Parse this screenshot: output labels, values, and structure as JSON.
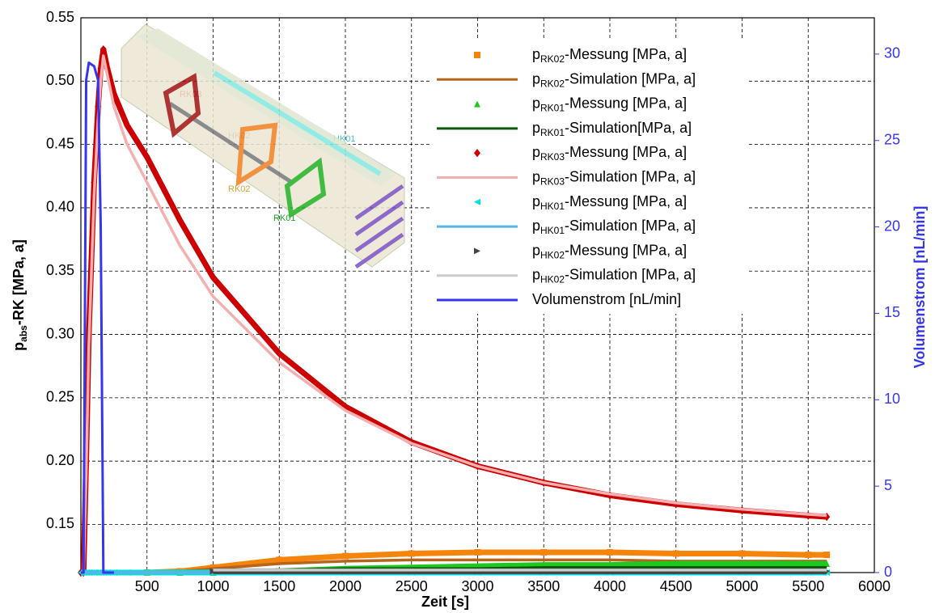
{
  "chart_data": {
    "type": "line",
    "x": [
      0,
      20,
      40,
      60,
      100,
      130,
      150,
      170,
      200,
      250,
      350,
      500,
      750,
      1000,
      1500,
      2000,
      2500,
      3000,
      3500,
      4000,
      4500,
      5000,
      5500,
      5640
    ],
    "xlim": [
      0,
      6000
    ],
    "xticks": [
      500,
      1000,
      1500,
      2000,
      2500,
      3000,
      3500,
      4000,
      4500,
      5000,
      5500,
      6000
    ],
    "ylim": [
      0.112,
      0.55
    ],
    "yticks": [
      0.15,
      {
        "value": 0.2,
        "label": "0.20"
      },
      0.25,
      {
        "value": 0.3,
        "label": "0.30"
      },
      0.35,
      {
        "value": 0.4,
        "label": "0.40"
      },
      0.45,
      {
        "value": 0.5,
        "label": "0.50"
      },
      0.55
    ],
    "y2lim": [
      0,
      32.1
    ],
    "y2ticks": [
      0,
      5,
      10,
      15,
      20,
      25,
      30
    ],
    "xlabel": "Zeit [s]",
    "ylabel": "pabs-RK [MPa, a]",
    "y2label": "Volumenstrom [nL/min]",
    "grid": true,
    "legend": "upper right",
    "annotations": [
      "RK03",
      "HK02",
      "HK01",
      "RK02",
      "RK01"
    ],
    "series": [
      {
        "name": "pRK02-Messung [MPa, a]",
        "color": "#f5840c",
        "style": "marker",
        "marker": "square",
        "values": [
          null,
          null,
          null,
          null,
          null,
          null,
          null,
          null,
          null,
          null,
          null,
          0.112,
          0.113,
          0.116,
          0.122,
          0.125,
          0.127,
          0.128,
          0.128,
          0.128,
          0.127,
          0.127,
          0.126,
          0.126
        ]
      },
      {
        "name": "pRK02-Simulation [MPa, a]",
        "color": "#b5641c",
        "style": "line",
        "values": [
          null,
          null,
          null,
          null,
          null,
          null,
          null,
          null,
          null,
          null,
          null,
          0.112,
          0.113,
          0.115,
          0.119,
          0.121,
          0.122,
          0.122,
          0.122,
          0.122,
          0.121,
          0.121,
          0.121,
          0.121
        ]
      },
      {
        "name": "pRK01-Messung [MPa, a]",
        "color": "#1ec81e",
        "style": "marker",
        "marker": "triangle",
        "values": [
          null,
          null,
          null,
          null,
          null,
          null,
          null,
          null,
          null,
          null,
          null,
          null,
          0.112,
          0.112,
          0.113,
          0.115,
          0.116,
          0.117,
          0.118,
          0.118,
          0.119,
          0.119,
          0.119,
          0.119
        ]
      },
      {
        "name": "pRK01-Simulation[MPa, a]",
        "color": "#0b5a0b",
        "style": "line",
        "values": [
          null,
          null,
          null,
          null,
          null,
          null,
          null,
          null,
          null,
          null,
          null,
          null,
          0.112,
          0.113,
          0.114,
          0.115,
          0.115,
          0.115,
          0.116,
          0.116,
          0.116,
          0.116,
          0.116,
          0.116
        ]
      },
      {
        "name": "pRK03-Messung [MPa, a]",
        "color": "#cc0000",
        "style": "marker",
        "marker": "diamond",
        "values": [
          0.112,
          0.112,
          0.2,
          0.3,
          0.42,
          0.48,
          0.51,
          0.525,
          0.51,
          0.49,
          0.465,
          0.44,
          0.39,
          0.345,
          0.285,
          0.243,
          0.215,
          0.196,
          0.183,
          0.173,
          0.166,
          0.161,
          0.157,
          0.156
        ]
      },
      {
        "name": "pRK03-Simulation [MPa, a]",
        "color": "#f4b0b0",
        "style": "line",
        "values": [
          0.112,
          0.112,
          0.19,
          0.29,
          0.41,
          0.47,
          0.5,
          0.52,
          0.505,
          0.48,
          0.45,
          0.42,
          0.37,
          0.33,
          0.278,
          0.24,
          0.214,
          0.196,
          0.183,
          0.174,
          0.167,
          0.162,
          0.158,
          0.157
        ]
      },
      {
        "name": "pHK01-Messung [MPa, a]",
        "color": "#00e0e0",
        "style": "marker",
        "marker": "triangle-left",
        "values": [
          0.112,
          0.112,
          0.112,
          0.112,
          0.112,
          0.112,
          0.112,
          0.112,
          0.112,
          0.112,
          0.112,
          0.112,
          0.112,
          0.112,
          0.112,
          0.112,
          0.112,
          0.112,
          0.112,
          0.112,
          0.112,
          0.112,
          0.112,
          0.112
        ]
      },
      {
        "name": "pHK01-Simulation [MPa, a]",
        "color": "#5ab4e6",
        "style": "line",
        "values": [
          0.112,
          0.112,
          0.112,
          0.112,
          0.112,
          0.112,
          0.112,
          0.112,
          0.112,
          0.112,
          0.112,
          0.112,
          0.112,
          0.112,
          0.112,
          0.112,
          0.112,
          0.112,
          0.112,
          0.112,
          0.112,
          0.112,
          0.112,
          0.112
        ]
      },
      {
        "name": "pHK02-Messung [MPa, a]",
        "color": "#444444",
        "style": "marker",
        "marker": "triangle-right",
        "values": [
          null,
          null,
          null,
          null,
          null,
          null,
          null,
          null,
          null,
          null,
          null,
          null,
          null,
          0.113,
          0.113,
          0.113,
          0.113,
          0.113,
          0.113,
          0.113,
          0.113,
          0.113,
          0.113,
          0.113
        ]
      },
      {
        "name": "pHK02-Simulation [MPa, a]",
        "color": "#cccccc",
        "style": "line",
        "values": [
          null,
          null,
          null,
          null,
          null,
          null,
          null,
          null,
          null,
          null,
          null,
          null,
          null,
          0.114,
          0.114,
          0.114,
          0.114,
          0.114,
          0.114,
          0.114,
          0.114,
          0.114,
          0.114,
          0.114
        ]
      },
      {
        "name": "Volumenstrom [nL/min]",
        "color": "#3636ee",
        "style": "line",
        "axis": "y2",
        "values": [
          0,
          0,
          28.5,
          29.5,
          29.3,
          28.5,
          20,
          0,
          0,
          0,
          null,
          null,
          null,
          null,
          null,
          null,
          null,
          null,
          null,
          null,
          null,
          null,
          null,
          null
        ]
      }
    ]
  }
}
